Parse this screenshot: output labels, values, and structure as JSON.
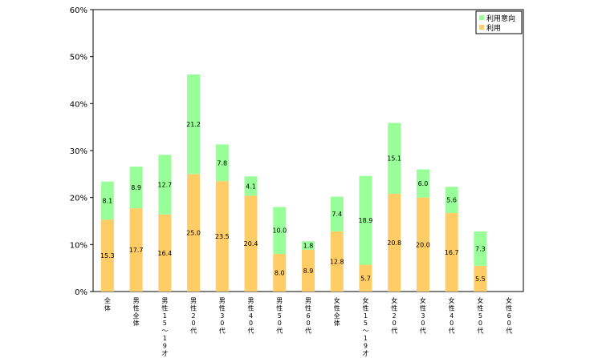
{
  "chart_data": {
    "type": "bar",
    "stacked": true,
    "categories": [
      "全体",
      "男性全体",
      "男性15~19才",
      "男性20代",
      "男性30代",
      "男性40代",
      "男性50代",
      "男性60代",
      "女性全体",
      "女性15~19才",
      "女性20代",
      "女性30代",
      "女性40代",
      "女性50代",
      "女性60代"
    ],
    "series": [
      {
        "name": "利用",
        "color": "#FFCC66",
        "values": [
          15.3,
          17.7,
          16.4,
          25.0,
          23.5,
          20.4,
          8.0,
          8.9,
          12.8,
          5.7,
          20.8,
          20.0,
          16.7,
          5.5,
          0
        ]
      },
      {
        "name": "利用意向",
        "color": "#99FF99",
        "values": [
          8.1,
          8.9,
          12.7,
          21.2,
          7.8,
          4.1,
          10.0,
          1.8,
          7.4,
          18.9,
          15.1,
          6.0,
          5.6,
          7.3,
          0
        ]
      }
    ],
    "ylim": [
      0,
      60
    ],
    "yticks": [
      "0%",
      "10%",
      "20%",
      "30%",
      "40%",
      "50%",
      "60%"
    ],
    "legend_position": "top-right",
    "grid": false
  }
}
